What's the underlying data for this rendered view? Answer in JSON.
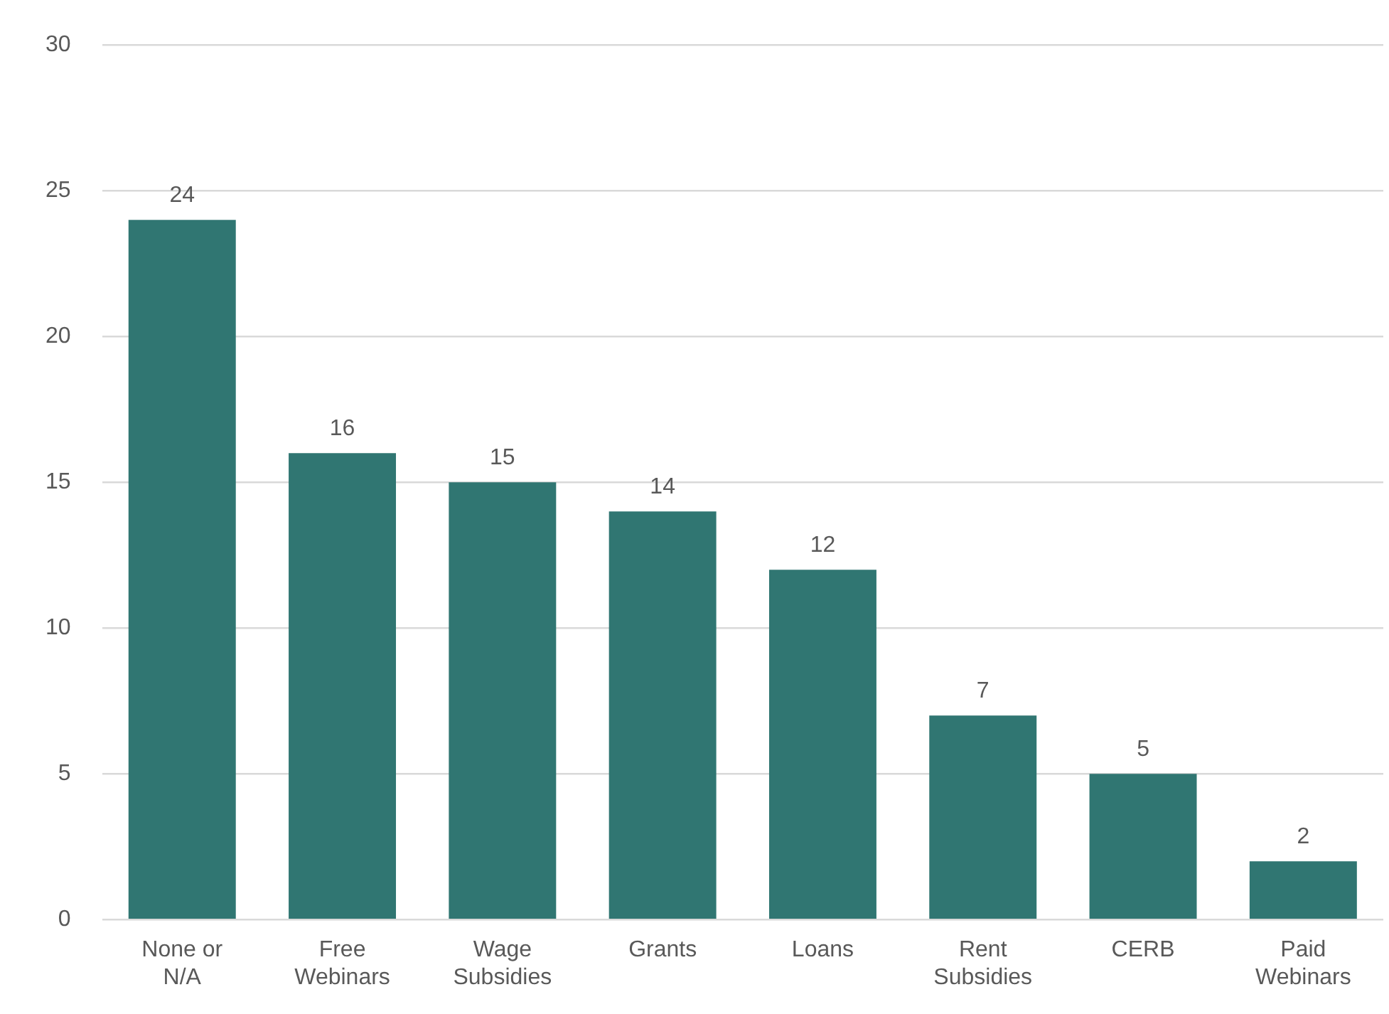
{
  "chart_data": {
    "type": "bar",
    "categories": [
      "None or N/A",
      "Free Webinars",
      "Wage Subsidies",
      "Grants",
      "Loans",
      "Rent Subsidies",
      "CERB",
      "Paid Webinars"
    ],
    "values": [
      24,
      16,
      15,
      14,
      12,
      7,
      5,
      2
    ],
    "color": "#307672",
    "ylim": [
      0,
      30
    ],
    "yticks": [
      0,
      5,
      10,
      15,
      20,
      25,
      30
    ],
    "grid": "y",
    "data_labels": true
  }
}
